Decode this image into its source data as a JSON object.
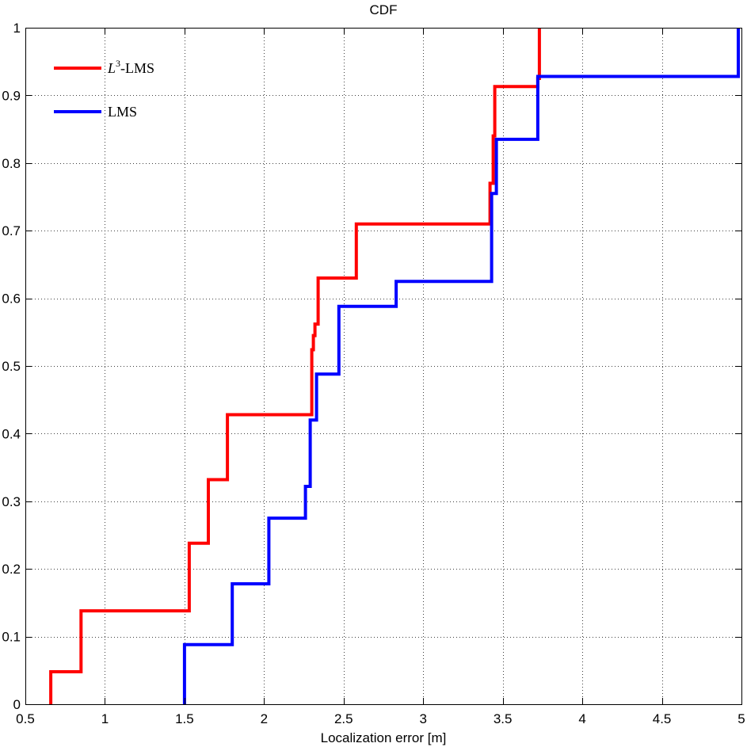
{
  "chart_data": {
    "type": "line",
    "step": true,
    "title": "CDF",
    "xlabel": "Localization error [m]",
    "ylabel": "",
    "xlim": [
      0.5,
      5
    ],
    "ylim": [
      0,
      1
    ],
    "xticks": [
      0.5,
      1,
      1.5,
      2,
      2.5,
      3,
      3.5,
      4,
      4.5,
      5
    ],
    "xtick_labels": [
      "0.5",
      "1",
      "1.5",
      "2",
      "2.5",
      "3",
      "3.5",
      "4",
      "4.5",
      "5"
    ],
    "yticks": [
      0,
      0.1,
      0.2,
      0.3,
      0.4,
      0.5,
      0.6,
      0.7,
      0.8,
      0.9,
      1
    ],
    "ytick_labels": [
      "0",
      "0.1",
      "0.2",
      "0.3",
      "0.4",
      "0.5",
      "0.6",
      "0.7",
      "0.8",
      "0.9",
      "1"
    ],
    "grid": true,
    "legend_position": "top-left",
    "series": [
      {
        "name": "L3-LMS",
        "legend_base": "L",
        "legend_sup": "3",
        "legend_suffix": "-LMS",
        "color": "#ff0000",
        "x": [
          0.66,
          0.66,
          0.85,
          0.85,
          1.53,
          1.53,
          1.65,
          1.65,
          1.77,
          1.77,
          2.3,
          2.3,
          2.31,
          2.31,
          2.32,
          2.32,
          2.34,
          2.34,
          2.58,
          2.58,
          3.42,
          3.42,
          3.44,
          3.44,
          3.45,
          3.45,
          3.72,
          3.72,
          3.73,
          3.73
        ],
        "y": [
          0,
          0.048,
          0.048,
          0.138,
          0.138,
          0.238,
          0.238,
          0.332,
          0.332,
          0.428,
          0.428,
          0.524,
          0.524,
          0.545,
          0.545,
          0.562,
          0.562,
          0.63,
          0.63,
          0.71,
          0.71,
          0.77,
          0.77,
          0.84,
          0.84,
          0.913,
          0.913,
          0.925,
          0.925,
          1.0
        ]
      },
      {
        "name": "LMS",
        "color": "#0000ff",
        "x": [
          1.5,
          1.5,
          1.8,
          1.8,
          2.03,
          2.03,
          2.26,
          2.26,
          2.29,
          2.29,
          2.33,
          2.33,
          2.47,
          2.47,
          2.83,
          2.83,
          3.43,
          3.43,
          3.46,
          3.46,
          3.72,
          3.72,
          4.98,
          4.98
        ],
        "y": [
          0,
          0.088,
          0.088,
          0.178,
          0.178,
          0.275,
          0.275,
          0.322,
          0.322,
          0.42,
          0.42,
          0.488,
          0.488,
          0.588,
          0.588,
          0.625,
          0.625,
          0.755,
          0.755,
          0.835,
          0.835,
          0.928,
          0.928,
          1.0
        ]
      }
    ]
  }
}
